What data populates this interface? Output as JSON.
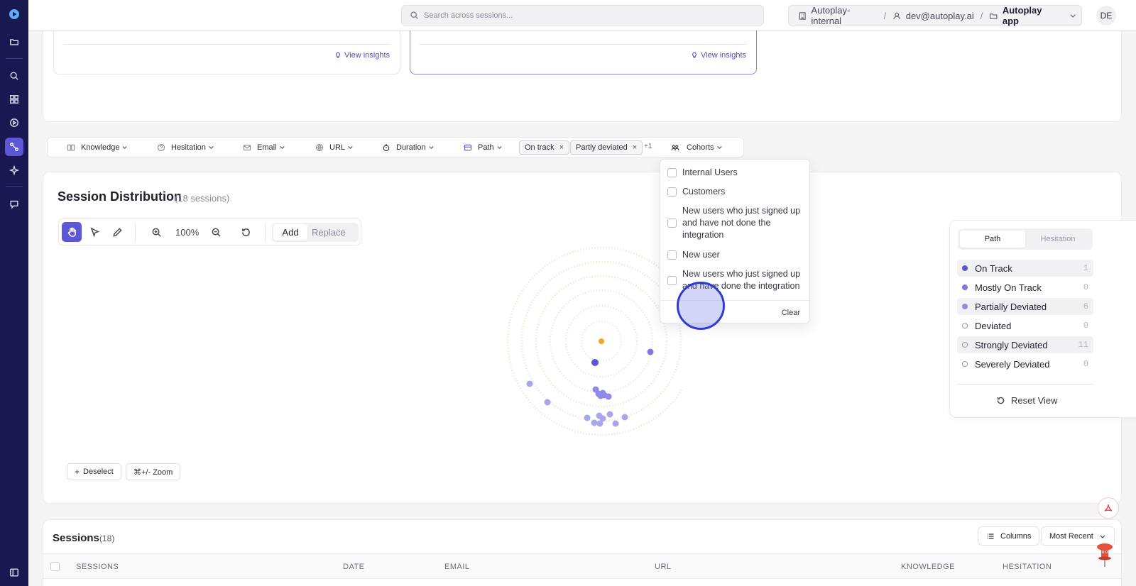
{
  "nav": {
    "items": [
      "logo",
      "folder",
      "search",
      "dashboard",
      "play",
      "path-analysis",
      "insights",
      "chat",
      "sidebar-toggle"
    ],
    "active": "path-analysis"
  },
  "header": {
    "search_placeholder": "Search across sessions...",
    "breadcrumb": {
      "org": "Autoplay-internal",
      "user": "dev@autoplay.ai",
      "app": "Autoplay app"
    },
    "avatar": "DE"
  },
  "insight_cards": {
    "view_insights_label": "View insights"
  },
  "filters": {
    "knowledge": "Knowledge",
    "hesitation": "Hesitation",
    "email": "Email",
    "url": "URL",
    "duration": "Duration",
    "path": "Path",
    "chips": [
      "On track",
      "Partly deviated"
    ],
    "more": "+1",
    "cohorts": "Cohorts"
  },
  "cohorts_dropdown": {
    "options": [
      "Internal Users",
      "Customers",
      "New users who just signed up and have not done the integration",
      "New user",
      "New users who just signed up and have done the integration"
    ],
    "clear_label": "Clear"
  },
  "distribution": {
    "title": "Session Distribution",
    "count_label": "(18 sessions)",
    "zoom_level": "100%",
    "mode_add": "Add",
    "mode_replace": "Replace",
    "deselect_label": "Deselect",
    "zoom_hint": "⌘+/- Zoom"
  },
  "legend": {
    "tabs": [
      "Path",
      "Hesitation"
    ],
    "active_tab": "Path",
    "items": [
      {
        "label": "On Track",
        "count": "1",
        "color": "#5b57d6",
        "filled": true,
        "highlighted": true
      },
      {
        "label": "Mostly On Track",
        "count": "0",
        "color": "#7d79e0",
        "filled": true,
        "highlighted": false
      },
      {
        "label": "Partially Deviated",
        "count": "6",
        "color": "#8e8ae6",
        "filled": true,
        "highlighted": true
      },
      {
        "label": "Deviated",
        "count": "0",
        "color": "#9a9aa6",
        "filled": false,
        "highlighted": false
      },
      {
        "label": "Strongly Deviated",
        "count": "11",
        "color": "#9a9aa6",
        "filled": false,
        "highlighted": true
      },
      {
        "label": "Severely Deviated",
        "count": "0",
        "color": "#9a9aa6",
        "filled": false,
        "highlighted": false
      }
    ],
    "reset_label": "Reset View"
  },
  "sessions": {
    "title": "Sessions",
    "count": "(18)",
    "columns_button": "Columns",
    "sort_button": "Most Recent",
    "headers": [
      "SESSIONS",
      "DATE",
      "EMAIL",
      "URL",
      "KNOWLEDGE",
      "HESITATION"
    ]
  },
  "colors": {
    "accent": "#5b57d6",
    "rail": "#1a1850",
    "center_point": "#f5a623"
  }
}
